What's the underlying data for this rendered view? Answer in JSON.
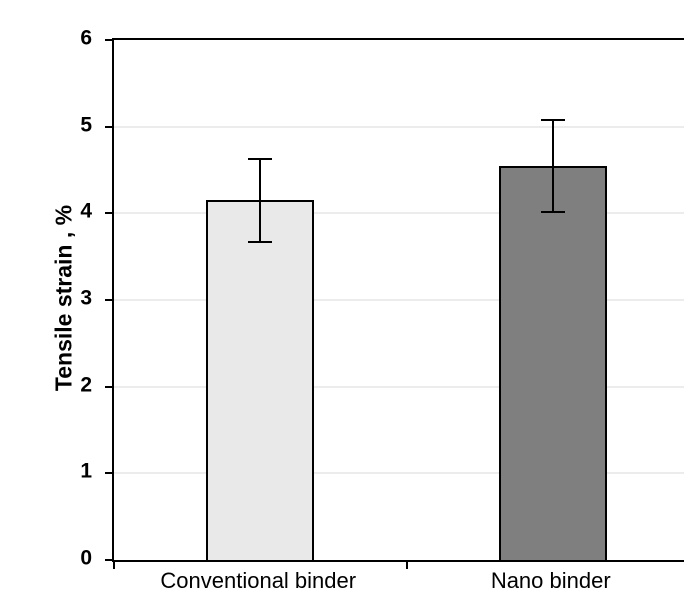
{
  "chart_data": {
    "type": "bar",
    "title": "",
    "categories": [
      "Conventional binder",
      "Nano binder"
    ],
    "values": [
      4.15,
      4.55
    ],
    "errors": [
      0.48,
      0.53
    ],
    "bar_colors": [
      "#e9e9e9",
      "#7f7f7f"
    ],
    "bar_border_color": "#000000",
    "xlabel": "",
    "ylabel": "Tensile strain , %",
    "ylim": [
      0,
      6
    ],
    "yticks": [
      0,
      1,
      2,
      3,
      4,
      5,
      6
    ],
    "grid": true,
    "gridline_color": "#d9d9d9",
    "legend_position": "none"
  }
}
